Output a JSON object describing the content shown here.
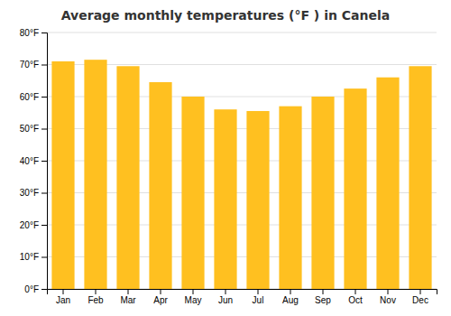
{
  "chart_data": {
    "type": "bar",
    "title": "Average monthly temperatures (°F ) in Canela",
    "categories": [
      "Jan",
      "Feb",
      "Mar",
      "Apr",
      "May",
      "Jun",
      "Jul",
      "Aug",
      "Sep",
      "Oct",
      "Nov",
      "Dec"
    ],
    "values": [
      71,
      71.5,
      69.5,
      64.5,
      60,
      56,
      55.5,
      57,
      60,
      62.5,
      66,
      69.5
    ],
    "color": "#FFC020",
    "ylim": [
      0,
      80
    ],
    "yticks": [
      {
        "value": 0,
        "label": "0°F"
      },
      {
        "value": 10,
        "label": "10°F"
      },
      {
        "value": 20,
        "label": "20°F"
      },
      {
        "value": 30,
        "label": "30°F"
      },
      {
        "value": 40,
        "label": "40°F"
      },
      {
        "value": 50,
        "label": "50°F"
      },
      {
        "value": 60,
        "label": "60°F"
      },
      {
        "value": 70,
        "label": "70°F"
      },
      {
        "value": 80,
        "label": "80°F"
      }
    ],
    "grid": true
  }
}
